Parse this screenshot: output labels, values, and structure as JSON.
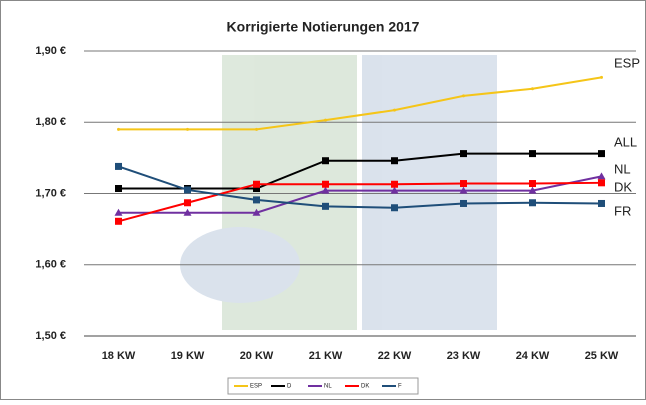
{
  "chart_data": {
    "type": "line",
    "title": "Korrigierte Notierungen 2017",
    "categories": [
      "18 KW",
      "19 KW",
      "20 KW",
      "21 KW",
      "22 KW",
      "23 KW",
      "24 KW",
      "25 KW"
    ],
    "series": [
      {
        "name": "ESP",
        "color": "#f5c518",
        "values": [
          1.79,
          1.79,
          1.79,
          1.803,
          1.817,
          1.837,
          1.847,
          1.863
        ]
      },
      {
        "name": "D",
        "color": "#000000",
        "values": [
          1.707,
          1.707,
          1.707,
          1.746,
          1.746,
          1.756,
          1.756,
          1.756
        ]
      },
      {
        "name": "NL",
        "color": "#7030a0",
        "values": [
          1.673,
          1.673,
          1.673,
          1.704,
          1.704,
          1.704,
          1.704,
          1.724
        ]
      },
      {
        "name": "DK",
        "color": "#ff0000",
        "values": [
          1.661,
          1.687,
          1.713,
          1.713,
          1.713,
          1.714,
          1.714,
          1.715
        ]
      },
      {
        "name": "F",
        "color": "#1f4e79",
        "values": [
          1.738,
          1.705,
          1.691,
          1.682,
          1.68,
          1.686,
          1.687,
          1.686
        ]
      }
    ],
    "end_labels": [
      "ESP",
      "ALL",
      "NL",
      "DK",
      "FR"
    ],
    "ylim": [
      1.5,
      1.9
    ],
    "yticks": [
      {
        "value": 1.5,
        "label": "1,50 €"
      },
      {
        "value": 1.6,
        "label": "1,60 €"
      },
      {
        "value": 1.7,
        "label": "1,70 €"
      },
      {
        "value": 1.8,
        "label": "1,80 €"
      },
      {
        "value": 1.9,
        "label": "1,90 €"
      }
    ],
    "grid": true
  }
}
